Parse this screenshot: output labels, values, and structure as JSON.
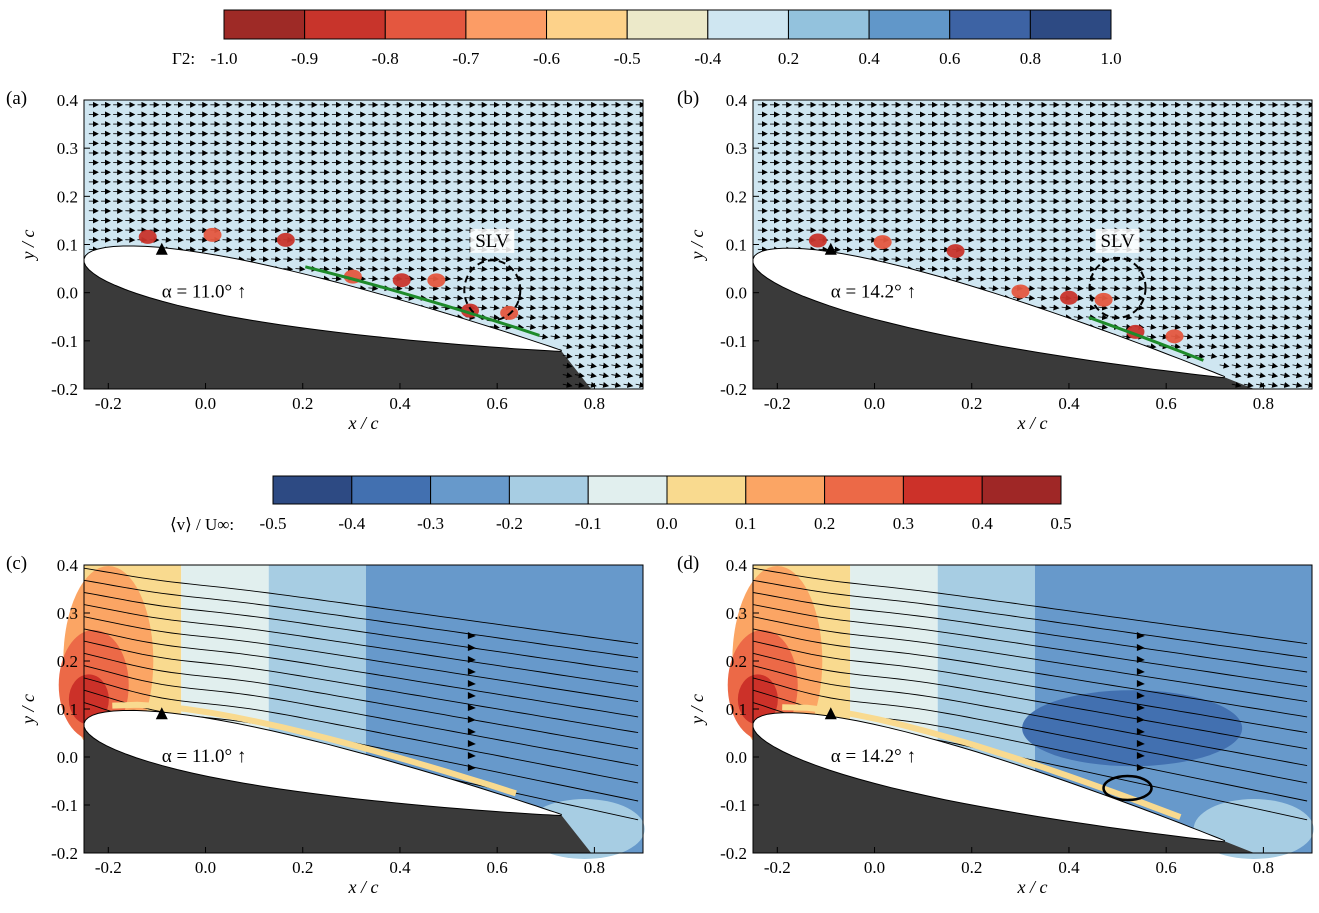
{
  "figure": {
    "colorbar_top": {
      "label": "Γ2:",
      "ticks": [
        "-1.0",
        "-0.9",
        "-0.8",
        "-0.7",
        "-0.6",
        "-0.5",
        "-0.4",
        "0.2",
        "0.4",
        "0.6",
        "0.8",
        "1.0"
      ],
      "colors": [
        "#9e2a26",
        "#c8342b",
        "#e4573f",
        "#fc9c65",
        "#fdd28a",
        "#ece9c9",
        "#cfe6f1",
        "#93c2dd",
        "#6197c9",
        "#3d63a4",
        "#2d4a83"
      ]
    },
    "colorbar_bottom": {
      "label": "⟨v⟩ / U∞:",
      "ticks": [
        "-0.5",
        "-0.4",
        "-0.3",
        "-0.2",
        "-0.1",
        "0.0",
        "0.1",
        "0.2",
        "0.3",
        "0.4",
        "0.5"
      ],
      "colors": [
        "#2d4a83",
        "#4270b0",
        "#6799cb",
        "#a7cde3",
        "#e1efee",
        "#f9da8f",
        "#fba564",
        "#ec6947",
        "#cc3129",
        "#9f2726"
      ]
    },
    "panels": {
      "a": {
        "label": "(a)",
        "alpha_text": "α = 11.0° ↑",
        "annotation": "SLV"
      },
      "b": {
        "label": "(b)",
        "alpha_text": "α = 14.2° ↑",
        "annotation": "SLV"
      },
      "c": {
        "label": "(c)",
        "alpha_text": "α = 11.0° ↑"
      },
      "d": {
        "label": "(d)",
        "alpha_text": "α = 14.2° ↑"
      }
    },
    "x_label": "x / c",
    "y_label": "y / c",
    "x_ticks": [
      "-0.2",
      "0.0",
      "0.2",
      "0.4",
      "0.6",
      "0.8"
    ],
    "y_ticks": [
      "0.4",
      "0.3",
      "0.2",
      "0.1",
      "0.0",
      "-0.1",
      "-0.2"
    ]
  },
  "chart_data": [
    {
      "type": "heatmap",
      "panel": "(a)",
      "field": "Γ2",
      "overlay": "velocity vectors",
      "xlabel": "x / c",
      "ylabel": "y / c",
      "xlim": [
        -0.25,
        0.9
      ],
      "ylim": [
        -0.2,
        0.4
      ],
      "angle_of_attack_deg": 11.0,
      "annotation": "SLV",
      "colorbar_levels": [
        -1.0,
        -0.9,
        -0.8,
        -0.7,
        -0.6,
        -0.5,
        -0.4,
        0.2,
        0.4,
        0.6,
        0.8,
        1.0
      ]
    },
    {
      "type": "heatmap",
      "panel": "(b)",
      "field": "Γ2",
      "overlay": "velocity vectors",
      "xlabel": "x / c",
      "ylabel": "y / c",
      "xlim": [
        -0.25,
        0.9
      ],
      "ylim": [
        -0.2,
        0.4
      ],
      "angle_of_attack_deg": 14.2,
      "annotation": "SLV",
      "colorbar_levels": [
        -1.0,
        -0.9,
        -0.8,
        -0.7,
        -0.6,
        -0.5,
        -0.4,
        0.2,
        0.4,
        0.6,
        0.8,
        1.0
      ]
    },
    {
      "type": "heatmap",
      "panel": "(c)",
      "field": "⟨v⟩ / U∞",
      "overlay": "streamlines",
      "xlabel": "x / c",
      "ylabel": "y / c",
      "xlim": [
        -0.25,
        0.9
      ],
      "ylim": [
        -0.2,
        0.4
      ],
      "angle_of_attack_deg": 11.0,
      "colorbar_levels": [
        -0.5,
        -0.4,
        -0.3,
        -0.2,
        -0.1,
        0.0,
        0.1,
        0.2,
        0.3,
        0.4,
        0.5
      ]
    },
    {
      "type": "heatmap",
      "panel": "(d)",
      "field": "⟨v⟩ / U∞",
      "overlay": "streamlines",
      "xlabel": "x / c",
      "ylabel": "y / c",
      "xlim": [
        -0.25,
        0.9
      ],
      "ylim": [
        -0.2,
        0.4
      ],
      "angle_of_attack_deg": 14.2,
      "colorbar_levels": [
        -0.5,
        -0.4,
        -0.3,
        -0.2,
        -0.1,
        0.0,
        0.1,
        0.2,
        0.3,
        0.4,
        0.5
      ]
    }
  ]
}
